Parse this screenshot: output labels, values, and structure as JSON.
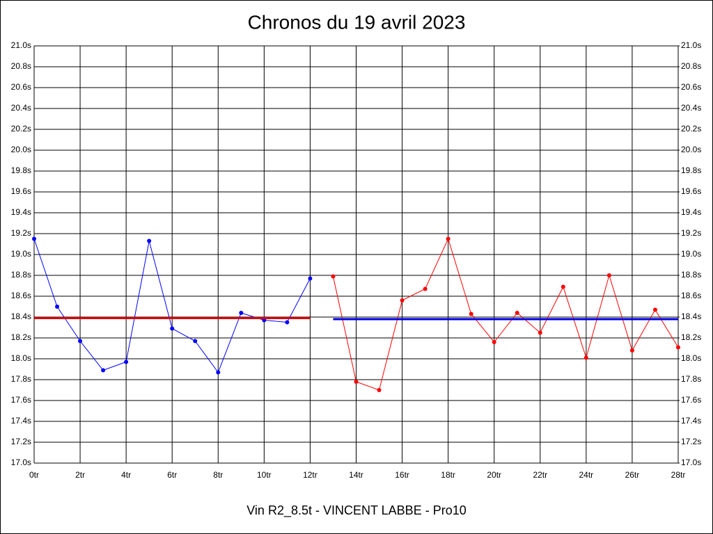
{
  "chart_data": {
    "type": "line",
    "title": "Chronos du 19 avril 2023",
    "xlabel": "Vin R2_8.5t - VINCENT LABBE - Pro10",
    "xlim": [
      0,
      28
    ],
    "xticks": [
      {
        "value": 0,
        "label": "0tr"
      },
      {
        "value": 2,
        "label": "2tr"
      },
      {
        "value": 4,
        "label": "4tr"
      },
      {
        "value": 6,
        "label": "6tr"
      },
      {
        "value": 8,
        "label": "8tr"
      },
      {
        "value": 10,
        "label": "10tr"
      },
      {
        "value": 12,
        "label": "12tr"
      },
      {
        "value": 14,
        "label": "14tr"
      },
      {
        "value": 16,
        "label": "16tr"
      },
      {
        "value": 18,
        "label": "18tr"
      },
      {
        "value": 20,
        "label": "20tr"
      },
      {
        "value": 22,
        "label": "22tr"
      },
      {
        "value": 24,
        "label": "24tr"
      },
      {
        "value": 26,
        "label": "26tr"
      },
      {
        "value": 28,
        "label": "28tr"
      }
    ],
    "ylim": [
      17.0,
      21.0
    ],
    "yticks": [
      {
        "value": 17.0,
        "label": "17.0s"
      },
      {
        "value": 17.2,
        "label": "17.2s"
      },
      {
        "value": 17.4,
        "label": "17.4s"
      },
      {
        "value": 17.6,
        "label": "17.6s"
      },
      {
        "value": 17.8,
        "label": "17.8s"
      },
      {
        "value": 18.0,
        "label": "18.0s"
      },
      {
        "value": 18.2,
        "label": "18.2s"
      },
      {
        "value": 18.4,
        "label": "18.4s"
      },
      {
        "value": 18.6,
        "label": "18.6s"
      },
      {
        "value": 18.8,
        "label": "18.8s"
      },
      {
        "value": 19.0,
        "label": "19.0s"
      },
      {
        "value": 19.2,
        "label": "19.2s"
      },
      {
        "value": 19.4,
        "label": "19.4s"
      },
      {
        "value": 19.6,
        "label": "19.6s"
      },
      {
        "value": 19.8,
        "label": "19.8s"
      },
      {
        "value": 20.0,
        "label": "20.0s"
      },
      {
        "value": 20.2,
        "label": "20.2s"
      },
      {
        "value": 20.4,
        "label": "20.4s"
      },
      {
        "value": 20.6,
        "label": "20.6s"
      },
      {
        "value": 20.8,
        "label": "20.8s"
      },
      {
        "value": 21.0,
        "label": "21.0s"
      }
    ],
    "y2lim": [
      17.0,
      21.0
    ],
    "y2ticks": [
      {
        "value": 17.0,
        "label": "17.0s"
      },
      {
        "value": 17.2,
        "label": "17.2s"
      },
      {
        "value": 17.4,
        "label": "17.4s"
      },
      {
        "value": 17.6,
        "label": "17.6s"
      },
      {
        "value": 17.8,
        "label": "17.8s"
      },
      {
        "value": 18.0,
        "label": "18.0s"
      },
      {
        "value": 18.2,
        "label": "18.2s"
      },
      {
        "value": 18.4,
        "label": "18.4s"
      },
      {
        "value": 18.6,
        "label": "18.6s"
      },
      {
        "value": 18.8,
        "label": "18.8s"
      },
      {
        "value": 19.0,
        "label": "19.0s"
      },
      {
        "value": 19.2,
        "label": "19.2s"
      },
      {
        "value": 19.4,
        "label": "19.4s"
      },
      {
        "value": 19.6,
        "label": "19.6s"
      },
      {
        "value": 19.8,
        "label": "19.8s"
      },
      {
        "value": 20.0,
        "label": "20.0s"
      },
      {
        "value": 20.2,
        "label": "20.2s"
      },
      {
        "value": 20.4,
        "label": "20.4s"
      },
      {
        "value": 20.6,
        "label": "20.6s"
      },
      {
        "value": 20.8,
        "label": "20.8s"
      },
      {
        "value": 21.0,
        "label": "21.0s"
      }
    ],
    "grid": true,
    "series": [
      {
        "color": "#0000ff",
        "markers": true,
        "line_width": 1,
        "x": [
          0,
          1,
          2,
          3,
          4,
          5,
          6,
          7,
          8,
          9,
          10,
          11,
          12
        ],
        "values": [
          19.15,
          18.5,
          18.17,
          17.89,
          17.97,
          19.13,
          18.29,
          18.17,
          17.87,
          18.44,
          18.37,
          18.35,
          18.77
        ]
      },
      {
        "color": "#ff0000",
        "markers": true,
        "line_width": 1,
        "x": [
          13,
          14,
          15,
          16,
          17,
          18,
          19,
          20,
          21,
          22,
          23,
          24,
          25,
          26,
          27,
          28
        ],
        "values": [
          18.79,
          17.78,
          17.7,
          18.56,
          18.67,
          19.15,
          18.43,
          18.16,
          18.44,
          18.25,
          18.69,
          18.01,
          18.8,
          18.08,
          18.47,
          18.11
        ]
      },
      {
        "color": "#dd0000",
        "markers": false,
        "line_width": 3,
        "x": [
          0,
          12
        ],
        "values": [
          18.39,
          18.39
        ]
      },
      {
        "color": "#0000dd",
        "markers": false,
        "line_width": 3,
        "x": [
          13,
          28
        ],
        "values": [
          18.38,
          18.38
        ]
      }
    ]
  }
}
